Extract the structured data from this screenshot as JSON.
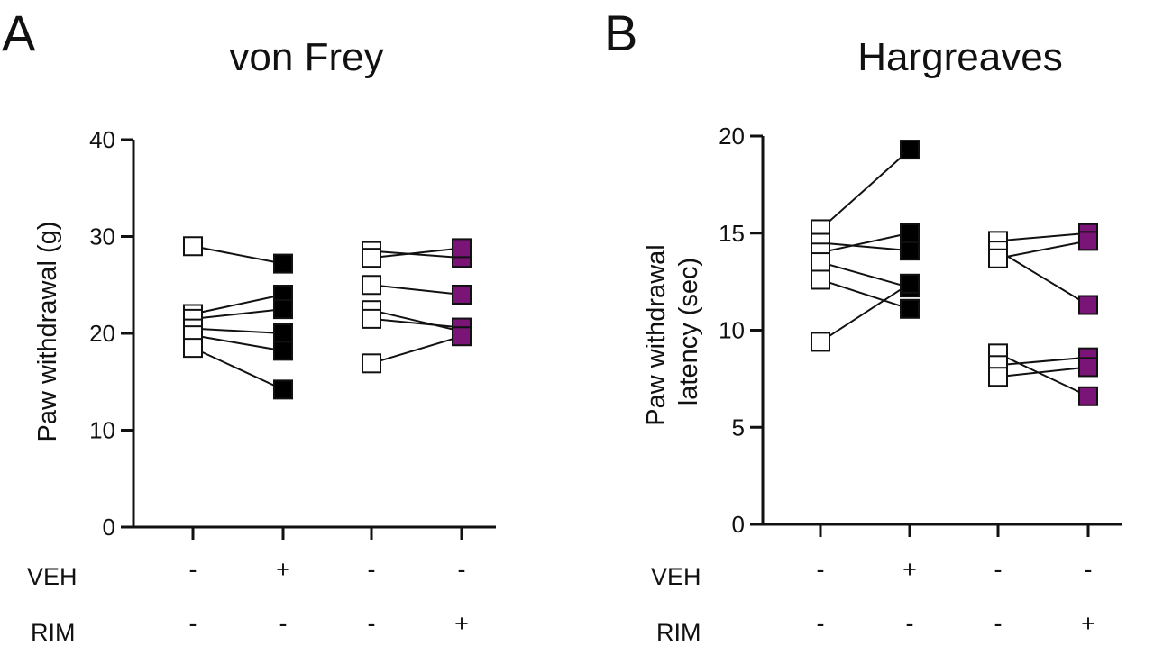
{
  "panels": [
    {
      "letter": "A",
      "chart_data": {
        "type": "scatter",
        "subtype": "paired before-after",
        "title": "von Frey",
        "ylabel": "Paw withdrawal (g)",
        "ylim": [
          0,
          40
        ],
        "yticks": [
          0,
          10,
          20,
          30,
          40
        ],
        "condition_rows": [
          {
            "label": "VEH",
            "marks": [
              "-",
              "+",
              "-",
              "-"
            ]
          },
          {
            "label": "RIM",
            "marks": [
              "-",
              "-",
              "-",
              "+"
            ]
          }
        ],
        "colors": {
          "baseline": "#ffffff",
          "veh": "#000000",
          "rim": "#7a1476",
          "line": "#111111"
        },
        "pairs": [
          {
            "fill": "veh",
            "values": [
              [
                29.0,
                27.2
              ],
              [
                22.0,
                24.0
              ],
              [
                21.5,
                22.5
              ],
              [
                20.5,
                20.0
              ],
              [
                19.8,
                18.2
              ],
              [
                18.5,
                14.2
              ]
            ]
          },
          {
            "fill": "rim",
            "values": [
              [
                28.5,
                27.8
              ],
              [
                27.8,
                28.8
              ],
              [
                25.0,
                24.0
              ],
              [
                22.4,
                20.2
              ],
              [
                21.5,
                20.6
              ],
              [
                16.9,
                19.7
              ]
            ]
          }
        ]
      }
    },
    {
      "letter": "B",
      "chart_data": {
        "type": "scatter",
        "subtype": "paired before-after",
        "title": "Hargreaves",
        "ylabel": "Paw withdrawal latency (sec)",
        "ylim": [
          0,
          20
        ],
        "yticks": [
          0,
          5,
          10,
          15,
          20
        ],
        "condition_rows": [
          {
            "label": "VEH",
            "marks": [
              "-",
              "+",
              "-",
              "-"
            ]
          },
          {
            "label": "RIM",
            "marks": [
              "-",
              "-",
              "-",
              "+"
            ]
          }
        ],
        "colors": {
          "baseline": "#ffffff",
          "veh": "#000000",
          "rim": "#7a1476",
          "line": "#111111"
        },
        "pairs": [
          {
            "fill": "veh",
            "values": [
              [
                15.2,
                19.3
              ],
              [
                14.5,
                14.1
              ],
              [
                14.0,
                15.0
              ],
              [
                13.5,
                12.2
              ],
              [
                12.6,
                11.1
              ],
              [
                9.4,
                12.4
              ]
            ]
          },
          {
            "fill": "rim",
            "values": [
              [
                14.6,
                15.0
              ],
              [
                14.1,
                11.3
              ],
              [
                13.7,
                14.6
              ],
              [
                8.8,
                6.6
              ],
              [
                8.2,
                8.6
              ],
              [
                7.6,
                8.1
              ]
            ]
          }
        ]
      }
    }
  ]
}
